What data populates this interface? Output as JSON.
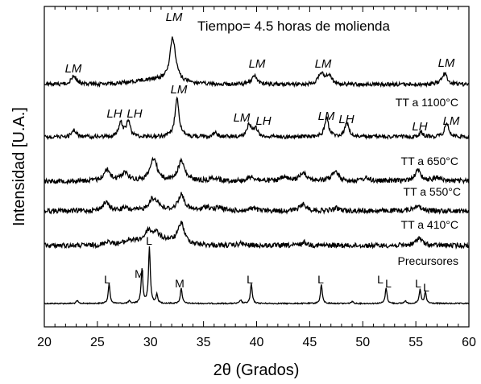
{
  "chart_data": {
    "type": "line",
    "title": "Tiempo= 4.5 horas de molienda",
    "xlabel": "2θ (Grados)",
    "ylabel": "Intensidad [U.A.]",
    "xlim": [
      20,
      60
    ],
    "xticks": [
      20,
      25,
      30,
      35,
      40,
      45,
      50,
      55,
      60
    ],
    "x_minor_step": 1,
    "y_ticks_shown": false,
    "grid": false,
    "legend": "none",
    "line_color": "#000000",
    "series": [
      {
        "name": "Precursores",
        "noise": 0.012,
        "peaks": [
          [
            23.1,
            0.05
          ],
          [
            26.1,
            0.35
          ],
          [
            28.0,
            0.04
          ],
          [
            29.2,
            0.6
          ],
          [
            29.9,
            1.0
          ],
          [
            30.6,
            0.15
          ],
          [
            32.9,
            0.28
          ],
          [
            38.5,
            0.06
          ],
          [
            39.5,
            0.35
          ],
          [
            46.1,
            0.34
          ],
          [
            49.0,
            0.04
          ],
          [
            52.2,
            0.28
          ],
          [
            54.0,
            0.05
          ],
          [
            55.4,
            0.25
          ],
          [
            55.9,
            0.2
          ]
        ],
        "peak_labels": [
          "L",
          "M",
          "L",
          "M",
          "L",
          "L",
          "L",
          "L",
          "L",
          "L"
        ]
      },
      {
        "name": "TT a 410°C",
        "noise": 0.05,
        "peaks": [
          [
            26.0,
            0.12
          ],
          [
            28.0,
            0.08
          ],
          [
            29.8,
            0.28
          ],
          [
            30.5,
            0.22
          ],
          [
            32.9,
            0.62
          ],
          [
            38.5,
            0.06
          ],
          [
            44.5,
            0.1
          ],
          [
            55.3,
            0.25
          ]
        ]
      },
      {
        "name": "TT a 550°C",
        "noise": 0.05,
        "peaks": [
          [
            25.8,
            0.32
          ],
          [
            27.6,
            0.1
          ],
          [
            30.1,
            0.35
          ],
          [
            30.6,
            0.28
          ],
          [
            32.9,
            0.62
          ],
          [
            35.3,
            0.15
          ],
          [
            36.5,
            0.12
          ],
          [
            39.6,
            0.1
          ],
          [
            44.4,
            0.25
          ],
          [
            47.5,
            0.1
          ],
          [
            55.1,
            0.22
          ]
        ]
      },
      {
        "name": "TT a 650°C",
        "noise": 0.05,
        "peaks": [
          [
            25.9,
            0.38
          ],
          [
            27.6,
            0.3
          ],
          [
            30.3,
            0.78
          ],
          [
            32.9,
            0.68
          ],
          [
            36.0,
            0.12
          ],
          [
            39.5,
            0.15
          ],
          [
            42.6,
            0.12
          ],
          [
            44.4,
            0.3
          ],
          [
            47.4,
            0.32
          ],
          [
            50.3,
            0.1
          ],
          [
            55.2,
            0.35
          ],
          [
            57.0,
            0.12
          ]
        ]
      },
      {
        "name": "TT a 1100°C",
        "noise": 0.04,
        "peaks": [
          [
            22.8,
            0.18
          ],
          [
            27.2,
            0.35
          ],
          [
            27.9,
            0.4
          ],
          [
            32.5,
            1.0
          ],
          [
            36.1,
            0.1
          ],
          [
            39.3,
            0.32
          ],
          [
            39.9,
            0.22
          ],
          [
            46.6,
            0.48
          ],
          [
            48.5,
            0.35
          ],
          [
            55.5,
            0.1
          ],
          [
            57.9,
            0.35
          ]
        ],
        "peak_labels": [
          "LH",
          "LH",
          "LM",
          "LM",
          "LH",
          "LM",
          "LH",
          "LH",
          "LM"
        ]
      },
      {
        "name": "",
        "noise": 0.04,
        "peaks": [
          [
            22.8,
            0.35
          ],
          [
            32.1,
            1.8
          ],
          [
            39.8,
            0.35
          ],
          [
            46.1,
            0.45
          ],
          [
            46.8,
            0.35
          ],
          [
            57.7,
            0.45
          ]
        ],
        "peak_labels": [
          "LM",
          "LM",
          "LM",
          "LM",
          "LM"
        ]
      }
    ]
  }
}
